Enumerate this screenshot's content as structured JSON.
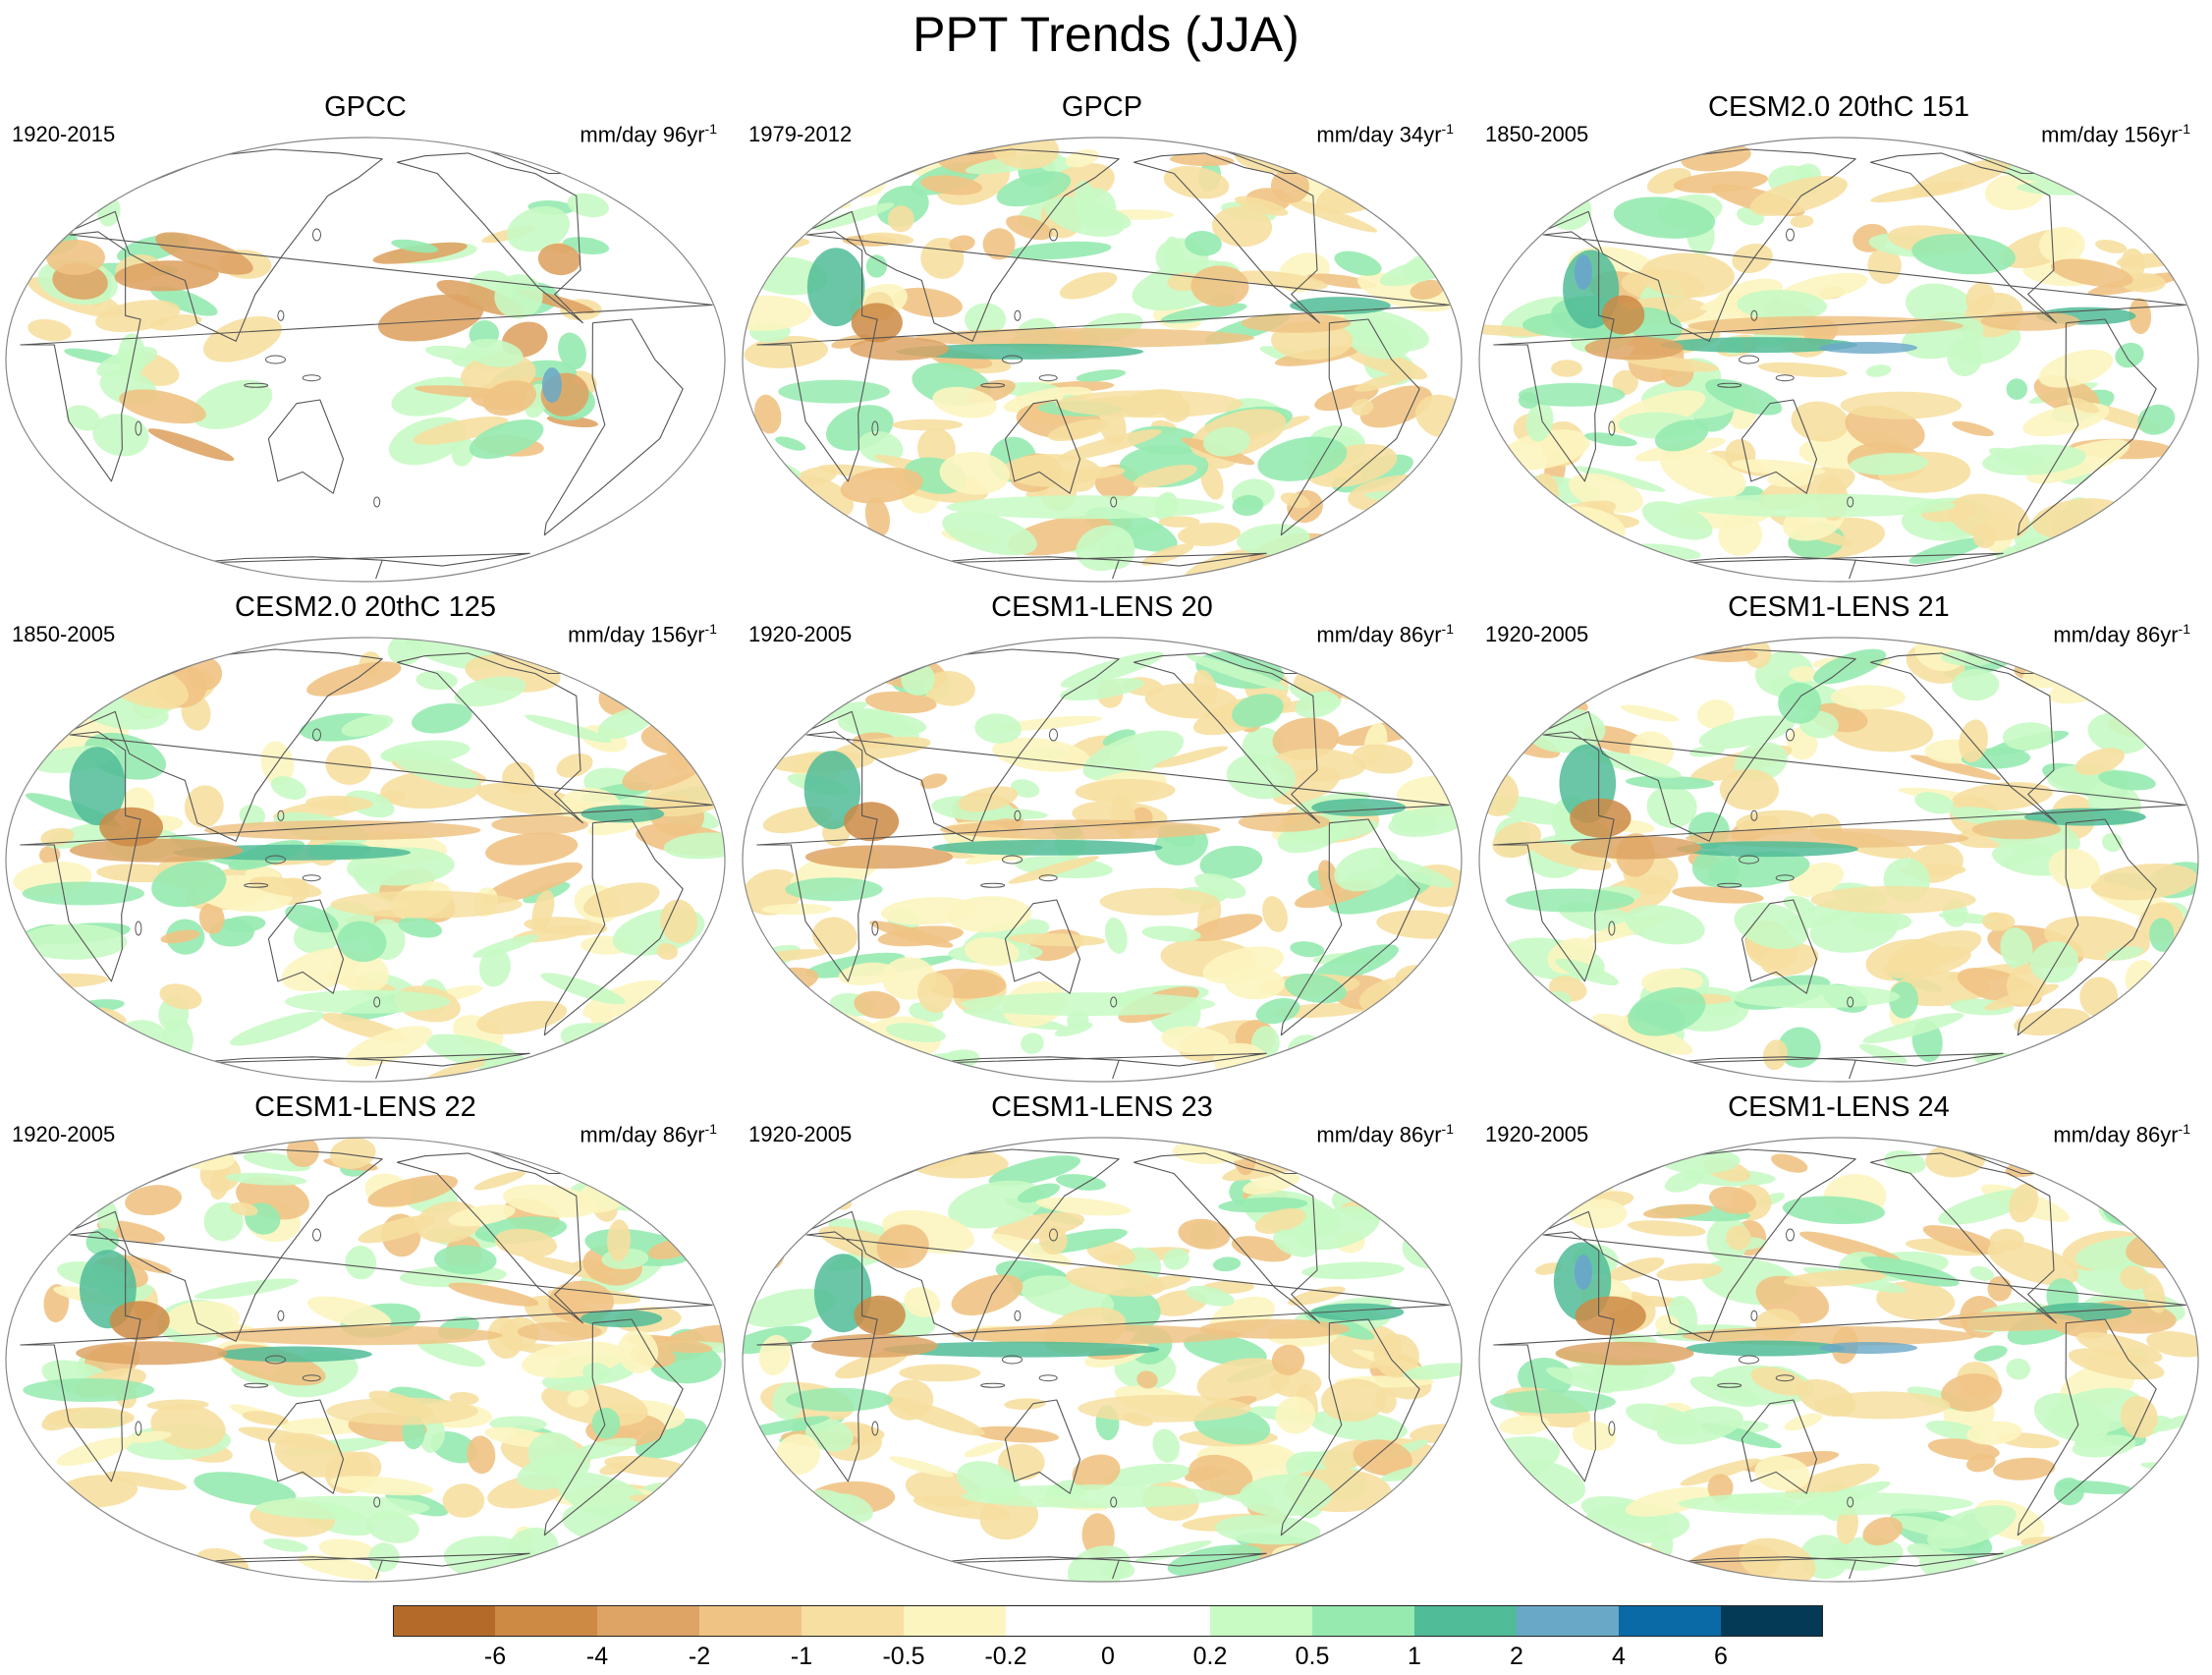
{
  "title": "PPT Trends (JJA)",
  "unit_prefix": "mm/day ",
  "unit_suffix": "-1",
  "colors": {
    "brown_dark": "#b46b29",
    "brown": "#cd8a45",
    "tan": "#dea465",
    "tan_light": "#efc384",
    "sand": "#f6dfa0",
    "cream": "#fcf5c0",
    "white": "#ffffff",
    "mint": "#c8fac4",
    "green_light": "#96eab0",
    "teal": "#50bc98",
    "steel": "#6aa8c8",
    "blue": "#0a6aa6",
    "navy": "#053a56",
    "coast": "#555555"
  },
  "colorbar": {
    "colors": [
      "#b46b29",
      "#cd8a45",
      "#dea465",
      "#efc384",
      "#f6dfa0",
      "#fcf5c0",
      "#ffffff",
      "#ffffff",
      "#c8fac4",
      "#96eab0",
      "#50bc98",
      "#6aa8c8",
      "#0a6aa6",
      "#053a56"
    ],
    "labels": [
      "-6",
      "-4",
      "-2",
      "-1",
      "-0.5",
      "-0.2",
      "0",
      "0.2",
      "0.5",
      "1",
      "2",
      "4",
      "6"
    ]
  },
  "panels": [
    {
      "title": "GPCC",
      "period": "1920-2015",
      "years": "96yr"
    },
    {
      "title": "GPCP",
      "period": "1979-2012",
      "years": "34yr"
    },
    {
      "title": "CESM2.0 20thC 151",
      "period": "1850-2005",
      "years": "156yr"
    },
    {
      "title": "CESM2.0 20thC 125",
      "period": "1850-2005",
      "years": "156yr"
    },
    {
      "title": "CESM1-LENS 20",
      "period": "1920-2005",
      "years": "86yr"
    },
    {
      "title": "CESM1-LENS 21",
      "period": "1920-2005",
      "years": "86yr"
    },
    {
      "title": "CESM1-LENS 22",
      "period": "1920-2005",
      "years": "86yr"
    },
    {
      "title": "CESM1-LENS 23",
      "period": "1920-2005",
      "years": "86yr"
    },
    {
      "title": "CESM1-LENS 24",
      "period": "1920-2005",
      "years": "86yr"
    }
  ]
}
